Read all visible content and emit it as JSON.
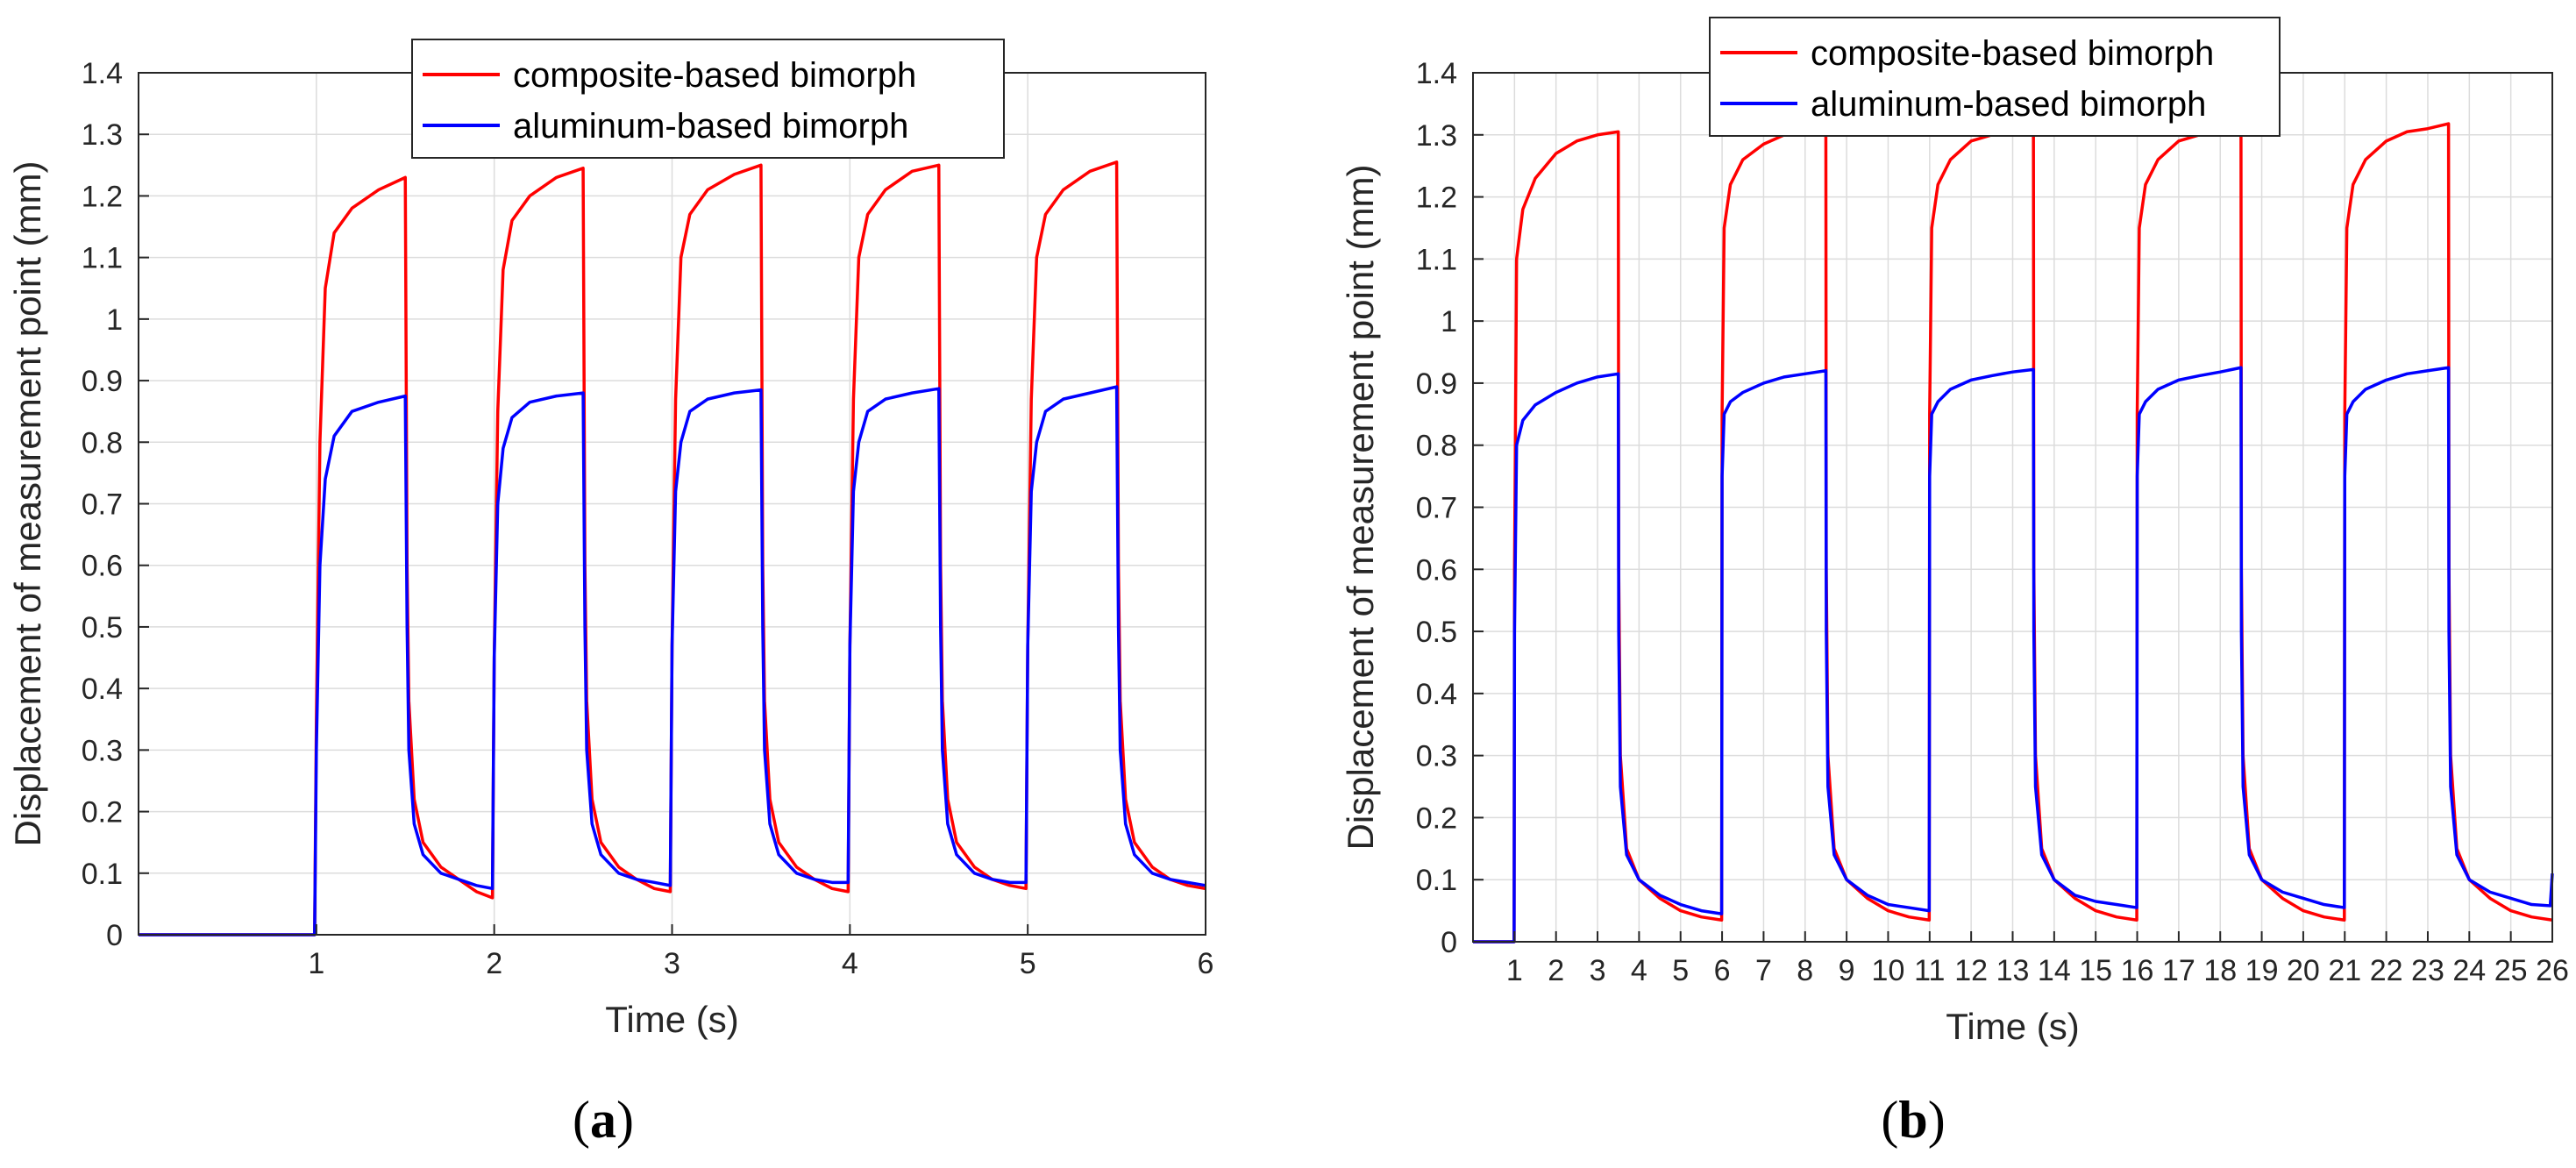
{
  "colors": {
    "composite": "#ff0000",
    "aluminum": "#0000ff",
    "axis": "#262626",
    "grid": "#dcdcdc"
  },
  "chart_data": [
    {
      "id": "a",
      "type": "line",
      "panel_label_open": "(",
      "panel_label_letter": "a",
      "panel_label_close": ")",
      "xlabel": "Time (s)",
      "ylabel": "Displacement of measurement point (mm)",
      "xlim": [
        0,
        6
      ],
      "ylim": [
        0,
        1.4
      ],
      "xticks": [
        1,
        2,
        3,
        4,
        5,
        6
      ],
      "xtick_labels": [
        "1",
        "2",
        "3",
        "4",
        "5",
        "6"
      ],
      "yticks": [
        0,
        0.1,
        0.2,
        0.3,
        0.4,
        0.5,
        0.6,
        0.7,
        0.8,
        0.9,
        1,
        1.1,
        1.2,
        1.3,
        1.4
      ],
      "ytick_labels": [
        "0",
        "0.1",
        "0.2",
        "0.3",
        "0.4",
        "0.5",
        "0.6",
        "0.7",
        "0.8",
        "0.9",
        "1",
        "1.1",
        "1.2",
        "1.3",
        "1.4"
      ],
      "grid": true,
      "legend": "top-center",
      "series": [
        {
          "name": "composite-based bimorph",
          "color": "#ff0000",
          "x": [
            0,
            0.99,
            1.0,
            1.02,
            1.05,
            1.1,
            1.2,
            1.35,
            1.5,
            1.51,
            1.52,
            1.55,
            1.6,
            1.7,
            1.8,
            1.9,
            1.99,
            2.0,
            2.02,
            2.05,
            2.1,
            2.2,
            2.35,
            2.5,
            2.51,
            2.52,
            2.55,
            2.6,
            2.7,
            2.8,
            2.9,
            2.99,
            3.0,
            3.02,
            3.05,
            3.1,
            3.2,
            3.35,
            3.5,
            3.51,
            3.52,
            3.55,
            3.6,
            3.7,
            3.8,
            3.9,
            3.99,
            4.0,
            4.02,
            4.05,
            4.1,
            4.2,
            4.35,
            4.5,
            4.51,
            4.52,
            4.55,
            4.6,
            4.7,
            4.8,
            4.9,
            4.99,
            5.0,
            5.02,
            5.05,
            5.1,
            5.2,
            5.35,
            5.5,
            5.51,
            5.52,
            5.55,
            5.6,
            5.7,
            5.8,
            5.9,
            6.0
          ],
          "y": [
            0,
            0,
            0.35,
            0.8,
            1.05,
            1.14,
            1.18,
            1.21,
            1.23,
            0.6,
            0.38,
            0.22,
            0.15,
            0.11,
            0.09,
            0.07,
            0.06,
            0.45,
            0.85,
            1.08,
            1.16,
            1.2,
            1.23,
            1.245,
            0.6,
            0.38,
            0.22,
            0.15,
            0.11,
            0.09,
            0.075,
            0.07,
            0.47,
            0.87,
            1.1,
            1.17,
            1.21,
            1.235,
            1.25,
            0.6,
            0.38,
            0.22,
            0.15,
            0.11,
            0.09,
            0.075,
            0.07,
            0.47,
            0.87,
            1.1,
            1.17,
            1.21,
            1.24,
            1.25,
            0.6,
            0.38,
            0.22,
            0.15,
            0.11,
            0.09,
            0.08,
            0.075,
            0.47,
            0.87,
            1.1,
            1.17,
            1.21,
            1.24,
            1.255,
            0.6,
            0.38,
            0.22,
            0.15,
            0.11,
            0.09,
            0.08,
            0.075
          ]
        },
        {
          "name": "aluminum-based bimorph",
          "color": "#0000ff",
          "x": [
            0,
            0.99,
            1.0,
            1.02,
            1.05,
            1.1,
            1.2,
            1.35,
            1.5,
            1.51,
            1.52,
            1.55,
            1.6,
            1.7,
            1.8,
            1.9,
            1.99,
            2.0,
            2.02,
            2.05,
            2.1,
            2.2,
            2.35,
            2.5,
            2.51,
            2.52,
            2.55,
            2.6,
            2.7,
            2.8,
            2.9,
            2.99,
            3.0,
            3.02,
            3.05,
            3.1,
            3.2,
            3.35,
            3.5,
            3.51,
            3.52,
            3.55,
            3.6,
            3.7,
            3.8,
            3.9,
            3.99,
            4.0,
            4.02,
            4.05,
            4.1,
            4.2,
            4.35,
            4.5,
            4.51,
            4.52,
            4.55,
            4.6,
            4.7,
            4.8,
            4.9,
            4.99,
            5.0,
            5.02,
            5.05,
            5.1,
            5.2,
            5.35,
            5.5,
            5.51,
            5.52,
            5.55,
            5.6,
            5.7,
            5.8,
            5.9,
            6.0
          ],
          "y": [
            0,
            0,
            0.3,
            0.6,
            0.74,
            0.81,
            0.85,
            0.865,
            0.875,
            0.5,
            0.3,
            0.18,
            0.13,
            0.1,
            0.09,
            0.08,
            0.075,
            0.45,
            0.7,
            0.79,
            0.84,
            0.865,
            0.875,
            0.88,
            0.5,
            0.3,
            0.18,
            0.13,
            0.1,
            0.09,
            0.085,
            0.08,
            0.47,
            0.72,
            0.8,
            0.85,
            0.87,
            0.88,
            0.885,
            0.5,
            0.3,
            0.18,
            0.13,
            0.1,
            0.09,
            0.085,
            0.085,
            0.47,
            0.72,
            0.8,
            0.85,
            0.87,
            0.88,
            0.887,
            0.5,
            0.3,
            0.18,
            0.13,
            0.1,
            0.09,
            0.085,
            0.085,
            0.47,
            0.72,
            0.8,
            0.85,
            0.87,
            0.88,
            0.89,
            0.5,
            0.3,
            0.18,
            0.13,
            0.1,
            0.09,
            0.085,
            0.08
          ]
        }
      ]
    },
    {
      "id": "b",
      "type": "line",
      "panel_label_open": "(",
      "panel_label_letter": "b",
      "panel_label_close": ")",
      "xlabel": "Time (s)",
      "ylabel": "Displacement of measurement point (mm)",
      "xlim": [
        0,
        26
      ],
      "ylim": [
        0,
        1.4
      ],
      "xticks": [
        1,
        2,
        3,
        4,
        5,
        6,
        7,
        8,
        9,
        10,
        11,
        12,
        13,
        14,
        15,
        16,
        17,
        18,
        19,
        20,
        21,
        22,
        23,
        24,
        25,
        26
      ],
      "xtick_labels": [
        "1",
        "2",
        "3",
        "4",
        "5",
        "6",
        "7",
        "8",
        "9",
        "10",
        "11",
        "12",
        "13",
        "14",
        "15",
        "16",
        "17",
        "18",
        "19",
        "20",
        "21",
        "22",
        "23",
        "24",
        "25",
        "26"
      ],
      "yticks": [
        0,
        0.1,
        0.2,
        0.3,
        0.4,
        0.5,
        0.6,
        0.7,
        0.8,
        0.9,
        1,
        1.1,
        1.2,
        1.3,
        1.4
      ],
      "ytick_labels": [
        "0",
        "0.1",
        "0.2",
        "0.3",
        "0.4",
        "0.5",
        "0.6",
        "0.7",
        "0.8",
        "0.9",
        "1",
        "1.1",
        "1.2",
        "1.3",
        "1.4"
      ],
      "grid": true,
      "legend": "top-center",
      "series": [
        {
          "name": "composite-based bimorph",
          "color": "#ff0000",
          "x": [
            0,
            0.99,
            1.0,
            1.05,
            1.2,
            1.5,
            2.0,
            2.5,
            3.0,
            3.5,
            3.51,
            3.55,
            3.7,
            4.0,
            4.5,
            5.0,
            5.5,
            5.99,
            6.0,
            6.05,
            6.2,
            6.5,
            7.0,
            7.5,
            8.0,
            8.5,
            8.51,
            8.55,
            8.7,
            9.0,
            9.5,
            10.0,
            10.5,
            10.99,
            11.0,
            11.05,
            11.2,
            11.5,
            12.0,
            12.5,
            13.0,
            13.5,
            13.51,
            13.55,
            13.7,
            14.0,
            14.5,
            15.0,
            15.5,
            15.99,
            16.0,
            16.05,
            16.2,
            16.5,
            17.0,
            17.5,
            18.0,
            18.5,
            18.51,
            18.55,
            18.7,
            19.0,
            19.5,
            20.0,
            20.5,
            20.99,
            21.0,
            21.05,
            21.2,
            21.5,
            22.0,
            22.5,
            23.0,
            23.5,
            23.51,
            23.55,
            23.7,
            24.0,
            24.5,
            25.0,
            25.5,
            26.0
          ],
          "y": [
            0,
            0,
            0.6,
            1.1,
            1.18,
            1.23,
            1.27,
            1.29,
            1.3,
            1.305,
            0.6,
            0.3,
            0.15,
            0.1,
            0.07,
            0.05,
            0.04,
            0.035,
            0.85,
            1.15,
            1.22,
            1.26,
            1.285,
            1.3,
            1.305,
            1.31,
            0.6,
            0.3,
            0.15,
            0.1,
            0.07,
            0.05,
            0.04,
            0.035,
            0.85,
            1.15,
            1.22,
            1.26,
            1.29,
            1.3,
            1.31,
            1.315,
            0.6,
            0.3,
            0.15,
            0.1,
            0.07,
            0.05,
            0.04,
            0.035,
            0.85,
            1.15,
            1.22,
            1.26,
            1.29,
            1.3,
            1.31,
            1.315,
            0.6,
            0.3,
            0.15,
            0.1,
            0.07,
            0.05,
            0.04,
            0.035,
            0.85,
            1.15,
            1.22,
            1.26,
            1.29,
            1.305,
            1.31,
            1.318,
            0.6,
            0.3,
            0.15,
            0.1,
            0.07,
            0.05,
            0.04,
            0.035
          ]
        },
        {
          "name": "aluminum-based bimorph",
          "color": "#0000ff",
          "x": [
            0,
            0.99,
            1.0,
            1.05,
            1.2,
            1.5,
            2.0,
            2.5,
            3.0,
            3.5,
            3.51,
            3.55,
            3.7,
            4.0,
            4.5,
            5.0,
            5.5,
            5.99,
            6.0,
            6.05,
            6.2,
            6.5,
            7.0,
            7.5,
            8.0,
            8.5,
            8.51,
            8.55,
            8.7,
            9.0,
            9.5,
            10.0,
            10.5,
            10.99,
            11.0,
            11.05,
            11.2,
            11.5,
            12.0,
            12.5,
            13.0,
            13.5,
            13.51,
            13.55,
            13.7,
            14.0,
            14.5,
            15.0,
            15.5,
            15.99,
            16.0,
            16.05,
            16.2,
            16.5,
            17.0,
            17.5,
            18.0,
            18.5,
            18.51,
            18.55,
            18.7,
            19.0,
            19.5,
            20.0,
            20.5,
            20.99,
            21.0,
            21.05,
            21.2,
            21.5,
            22.0,
            22.5,
            23.0,
            23.5,
            23.51,
            23.55,
            23.7,
            24.0,
            24.5,
            25.0,
            25.5,
            25.95,
            26.0
          ],
          "y": [
            0,
            0,
            0.5,
            0.8,
            0.84,
            0.865,
            0.885,
            0.9,
            0.91,
            0.915,
            0.5,
            0.25,
            0.14,
            0.1,
            0.075,
            0.06,
            0.05,
            0.045,
            0.75,
            0.85,
            0.87,
            0.885,
            0.9,
            0.91,
            0.915,
            0.92,
            0.5,
            0.25,
            0.14,
            0.1,
            0.075,
            0.06,
            0.055,
            0.05,
            0.75,
            0.85,
            0.87,
            0.89,
            0.905,
            0.912,
            0.918,
            0.922,
            0.5,
            0.25,
            0.14,
            0.1,
            0.075,
            0.065,
            0.06,
            0.055,
            0.75,
            0.85,
            0.87,
            0.89,
            0.905,
            0.912,
            0.918,
            0.925,
            0.5,
            0.25,
            0.14,
            0.1,
            0.08,
            0.07,
            0.06,
            0.055,
            0.75,
            0.85,
            0.87,
            0.89,
            0.905,
            0.915,
            0.92,
            0.925,
            0.5,
            0.25,
            0.14,
            0.1,
            0.08,
            0.07,
            0.06,
            0.058,
            0.11
          ]
        }
      ]
    }
  ]
}
